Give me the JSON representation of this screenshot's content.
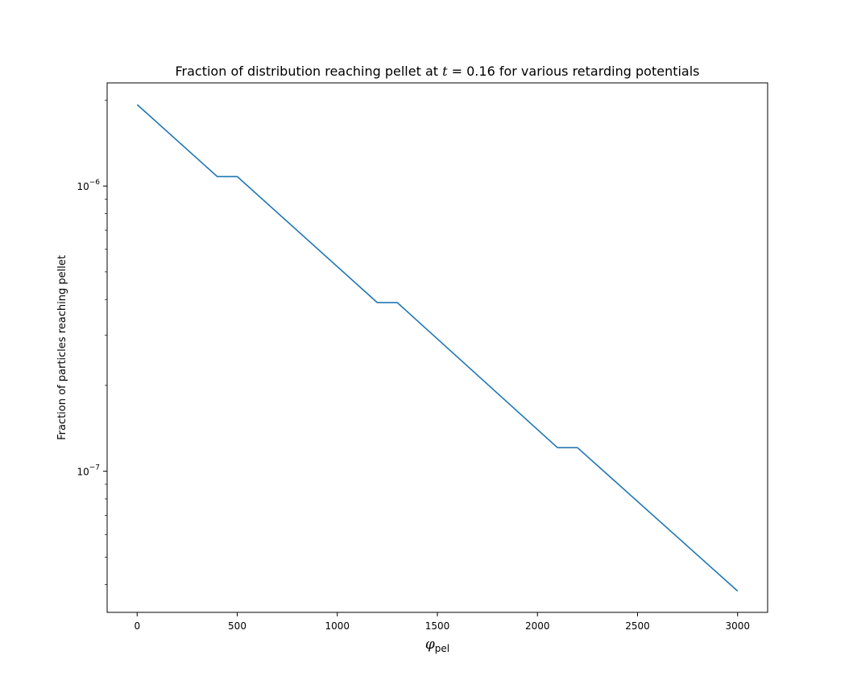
{
  "chart_data": {
    "type": "line",
    "title_prefix": "Fraction of distribution reaching pellet at ",
    "title_var": "t",
    "title_suffix": " = 0.16 for various retarding potentials",
    "xlabel_symbol": "φ",
    "xlabel_subscript": "pel",
    "ylabel": "Fraction of particles reaching pellet",
    "yscale": "log",
    "xlim": [
      -150,
      3150
    ],
    "ylim": [
      3.2e-08,
      2.3e-06
    ],
    "xticks": [
      0,
      500,
      1000,
      1500,
      2000,
      2500,
      3000
    ],
    "xtick_labels": [
      "0",
      "500",
      "1000",
      "1500",
      "2000",
      "2500",
      "3000"
    ],
    "yticks": [
      {
        "value": 1e-06,
        "base": "10",
        "exp": "−6"
      },
      {
        "value": 1e-07,
        "base": "10",
        "exp": "−7"
      }
    ],
    "grid": false,
    "series": [
      {
        "color": "#1f77b4",
        "x": [
          0,
          400,
          500,
          1200,
          1300,
          2100,
          2200,
          3000
        ],
        "y": [
          1.93e-06,
          1.08e-06,
          1.08e-06,
          3.9e-07,
          3.9e-07,
          1.21e-07,
          1.21e-07,
          3.8e-08
        ]
      }
    ]
  }
}
